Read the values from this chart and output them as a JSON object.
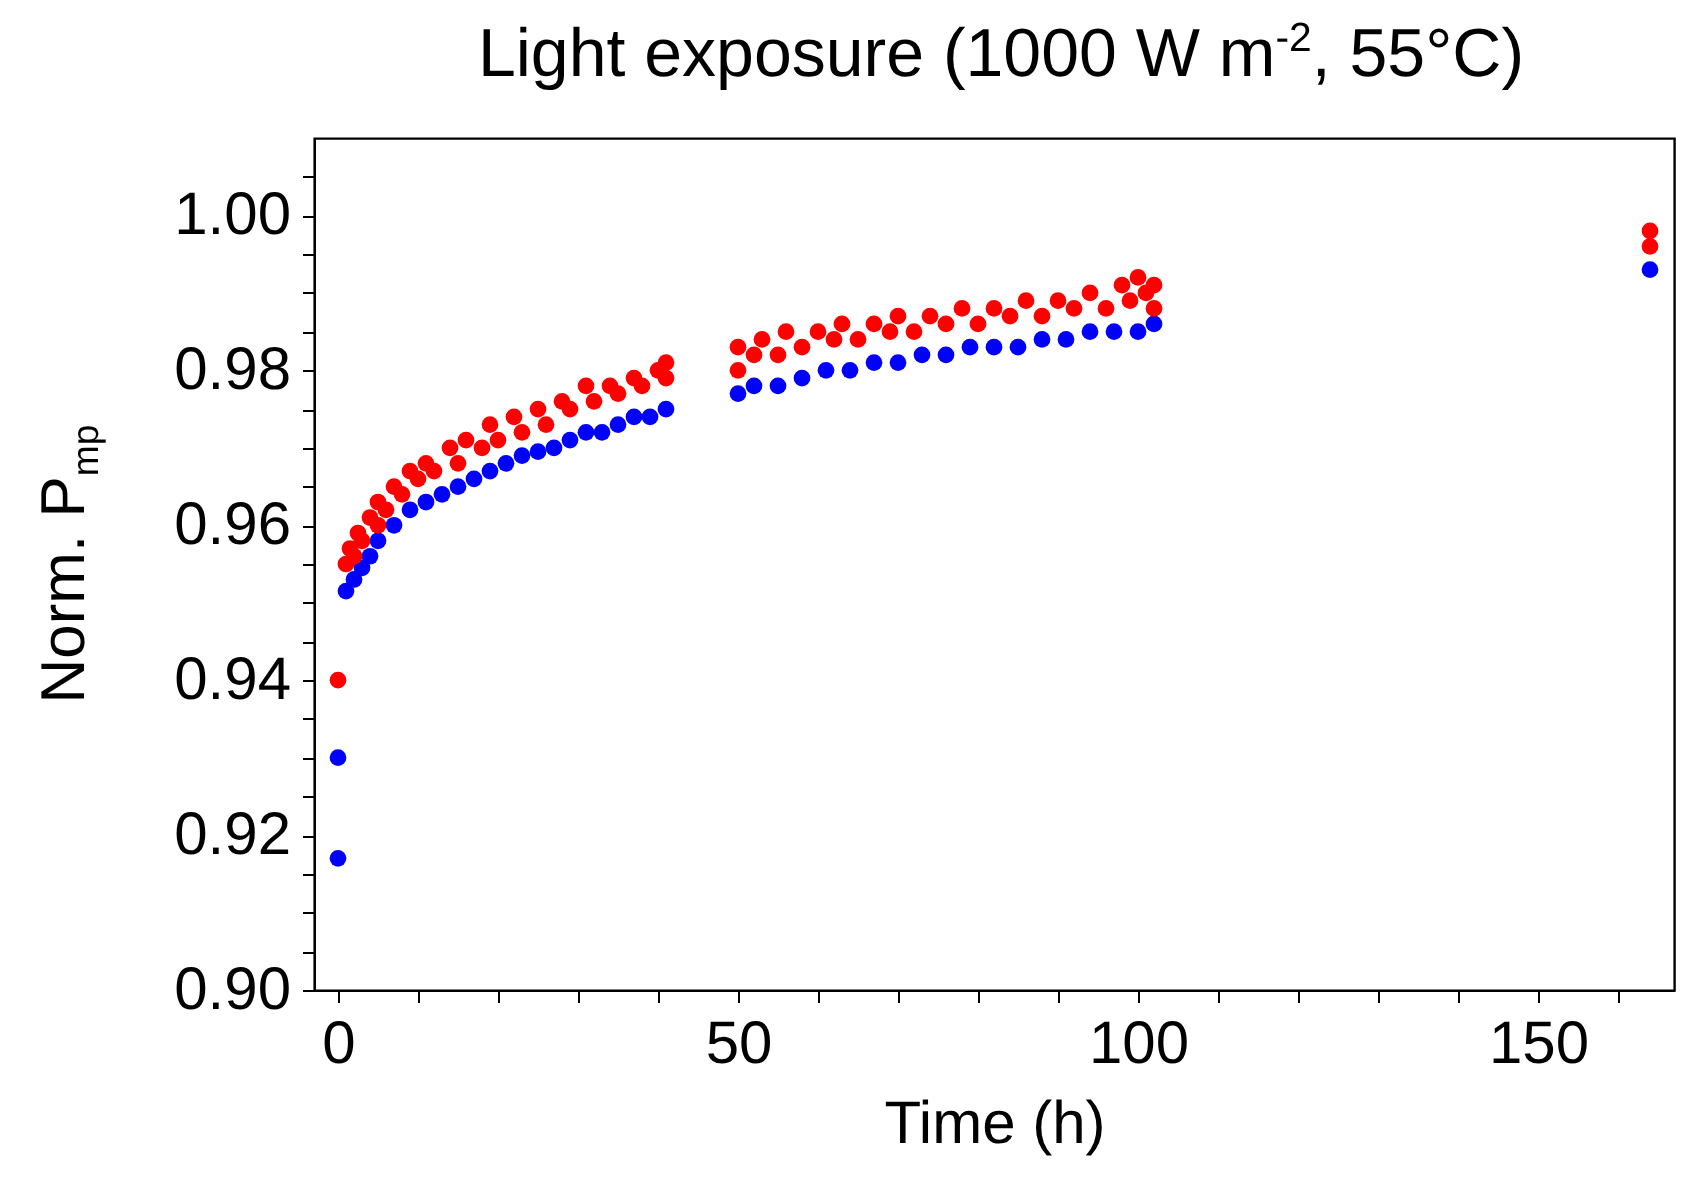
{
  "chart_data": {
    "type": "scatter",
    "title": "Light exposure (1000 W m$^{-2}$, 55°C)",
    "xlabel": "Time (h)",
    "ylabel": "Norm. P$_{mp}$",
    "series": [
      {
        "color": "#0000ff",
        "x": [
          0,
          0,
          1,
          2,
          3,
          4,
          5,
          7,
          9,
          11,
          13,
          15,
          17,
          19,
          21,
          23,
          25,
          27,
          29,
          31,
          33,
          35,
          37,
          39,
          41,
          50,
          52,
          55,
          58,
          61,
          64,
          67,
          70,
          73,
          76,
          79,
          82,
          85,
          88,
          91,
          94,
          97,
          100,
          102,
          164
        ],
        "values": [
          0.93,
          0.917,
          0.9515,
          0.953,
          0.9545,
          0.956,
          0.958,
          0.96,
          0.962,
          0.963,
          0.964,
          0.965,
          0.966,
          0.967,
          0.968,
          0.969,
          0.9695,
          0.97,
          0.971,
          0.972,
          0.972,
          0.973,
          0.974,
          0.974,
          0.975,
          0.977,
          0.978,
          0.978,
          0.979,
          0.98,
          0.98,
          0.981,
          0.981,
          0.982,
          0.982,
          0.983,
          0.983,
          0.983,
          0.984,
          0.984,
          0.985,
          0.985,
          0.985,
          0.986,
          0.993
        ]
      },
      {
        "color": "#ff0000",
        "x": [
          0,
          1,
          1.5,
          2,
          2.5,
          3,
          4,
          5,
          5,
          6,
          7,
          8,
          9,
          10,
          11,
          12,
          14,
          15,
          16,
          18,
          19,
          20,
          22,
          23,
          25,
          26,
          28,
          29,
          31,
          32,
          34,
          35,
          37,
          38,
          40,
          41,
          41,
          50,
          50,
          52,
          53,
          55,
          56,
          58,
          60,
          62,
          63,
          65,
          67,
          69,
          70,
          72,
          74,
          76,
          78,
          80,
          82,
          84,
          86,
          88,
          90,
          92,
          94,
          96,
          98,
          99,
          100,
          101,
          102,
          102,
          164,
          164
        ],
        "values": [
          0.94,
          0.955,
          0.957,
          0.956,
          0.959,
          0.958,
          0.961,
          0.96,
          0.963,
          0.962,
          0.965,
          0.964,
          0.967,
          0.966,
          0.968,
          0.967,
          0.97,
          0.968,
          0.971,
          0.97,
          0.973,
          0.971,
          0.974,
          0.972,
          0.975,
          0.973,
          0.976,
          0.975,
          0.978,
          0.976,
          0.978,
          0.977,
          0.979,
          0.978,
          0.98,
          0.979,
          0.981,
          0.98,
          0.983,
          0.982,
          0.984,
          0.982,
          0.985,
          0.983,
          0.985,
          0.984,
          0.986,
          0.984,
          0.986,
          0.985,
          0.987,
          0.985,
          0.987,
          0.986,
          0.988,
          0.986,
          0.988,
          0.987,
          0.989,
          0.987,
          0.989,
          0.988,
          0.99,
          0.988,
          0.991,
          0.989,
          0.992,
          0.99,
          0.988,
          0.991,
          0.998,
          0.996
        ]
      }
    ],
    "xlim": [
      -3,
      167
    ],
    "xticks": [
      0,
      {
        "value": 10,
        "label": null
      },
      {
        "value": 20,
        "label": null
      },
      {
        "value": 30,
        "label": null
      },
      {
        "value": 40,
        "label": null
      },
      50,
      {
        "value": 60,
        "label": null
      },
      {
        "value": 70,
        "label": null
      },
      {
        "value": 80,
        "label": null
      },
      {
        "value": 90,
        "label": null
      },
      100,
      {
        "value": 110,
        "label": null
      },
      {
        "value": 120,
        "label": null
      },
      {
        "value": 130,
        "label": null
      },
      {
        "value": 140,
        "label": null
      },
      150,
      {
        "value": 160,
        "label": null
      }
    ],
    "ylim": [
      0.9,
      1.01
    ],
    "yticks": [
      {
        "value": 0.9,
        "label": "0.90"
      },
      {
        "value": 0.905,
        "label": null
      },
      {
        "value": 0.91,
        "label": null
      },
      {
        "value": 0.915,
        "label": null
      },
      0.92,
      {
        "value": 0.925,
        "label": null
      },
      {
        "value": 0.93,
        "label": null
      },
      {
        "value": 0.935,
        "label": null
      },
      0.94,
      {
        "value": 0.945,
        "label": null
      },
      {
        "value": 0.95,
        "label": null
      },
      {
        "value": 0.955,
        "label": null
      },
      0.96,
      {
        "value": 0.965,
        "label": null
      },
      {
        "value": 0.97,
        "label": null
      },
      {
        "value": 0.975,
        "label": null
      },
      0.98,
      {
        "value": 0.985,
        "label": null
      },
      {
        "value": 0.99,
        "label": null
      },
      {
        "value": 0.995,
        "label": null
      },
      {
        "value": 1,
        "label": "1.00"
      },
      {
        "value": 1.005,
        "label": null
      }
    ],
    "grid": false,
    "marker": "circle"
  }
}
